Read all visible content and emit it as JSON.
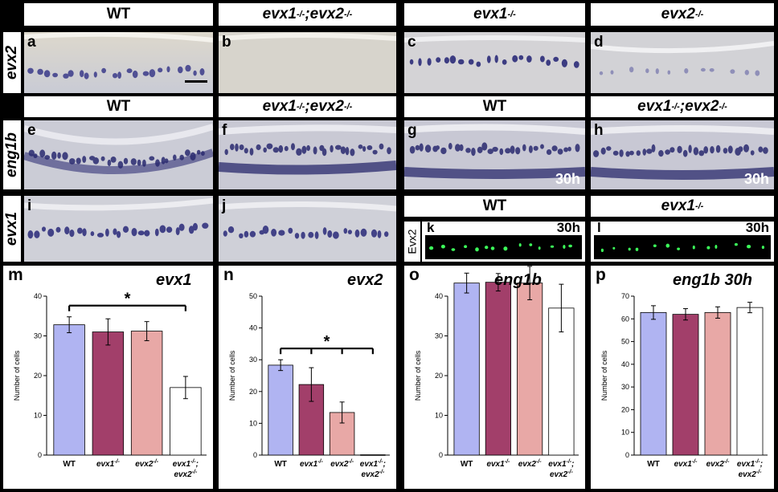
{
  "headers_row1": [
    {
      "text": "WT",
      "sup": ""
    },
    {
      "text": "evx1",
      "sup": "-/-",
      "text2": ";evx2",
      "sup2": "-/-"
    },
    {
      "text": "evx1",
      "sup": "-/-"
    },
    {
      "text": "evx2",
      "sup": "-/-"
    }
  ],
  "headers_row2": [
    {
      "text": "WT",
      "sup": ""
    },
    {
      "text": "evx1",
      "sup": "-/-",
      "text2": ";evx2",
      "sup2": "-/-"
    },
    {
      "text": "WT",
      "sup": ""
    },
    {
      "text": "evx1",
      "sup": "-/-",
      "text2": ";evx2",
      "sup2": "-/-"
    }
  ],
  "headers_row3": [
    {
      "text": "WT",
      "sup": ""
    },
    {
      "text": "evx1",
      "sup": "-/-"
    }
  ],
  "row_labels": {
    "row1": "evx2",
    "row2": "eng1b",
    "row3": "evx1",
    "evx2_ab": "Evx2"
  },
  "panel_letters": [
    "a",
    "b",
    "c",
    "d",
    "e",
    "f",
    "g",
    "h",
    "i",
    "j",
    "k",
    "l"
  ],
  "time_tag": "30h",
  "colors": {
    "stain": "#3a3a8a",
    "tissue": "#c8cad6",
    "fluor": "#3cff5a",
    "bar_wt": "#b0b4f2",
    "bar_evx1": "#a23f6a",
    "bar_evx2": "#e8a8a6",
    "bar_dbl": "#ffffff"
  },
  "chart_data": [
    {
      "type": "bar",
      "letter": "m",
      "title": "evx1",
      "ylabel": "Number of cells",
      "ylim": [
        0,
        40
      ],
      "yticks": [
        0,
        10,
        20,
        30,
        40
      ],
      "categories": [
        "WT",
        "evx1-/-",
        "evx2-/-",
        "evx1-/-; evx2-/-"
      ],
      "cat_main": [
        "WT",
        "evx1",
        "evx2",
        "evx1"
      ],
      "cat_sup": [
        "",
        "-/-",
        "-/-",
        "-/-"
      ],
      "cat_line2": [
        "",
        "",
        "",
        "evx2"
      ],
      "cat_line2_sup": [
        "",
        "",
        "",
        "-/-"
      ],
      "values": [
        32.8,
        31.0,
        31.2,
        17.0
      ],
      "errors": [
        2.0,
        3.3,
        2.4,
        2.8
      ],
      "sig": [
        {
          "from": 0,
          "to": 3,
          "ticks": [
            0,
            3
          ],
          "label": "*"
        }
      ]
    },
    {
      "type": "bar",
      "letter": "n",
      "title": "evx2",
      "ylabel": "Number of cells",
      "ylim": [
        0,
        50
      ],
      "yticks": [
        0,
        10,
        20,
        30,
        40,
        50
      ],
      "categories": [
        "WT",
        "evx1-/-",
        "evx2-/-",
        "evx1-/-; evx2-/-"
      ],
      "cat_main": [
        "WT",
        "evx1",
        "evx2",
        "evx1"
      ],
      "cat_sup": [
        "",
        "-/-",
        "-/-",
        "-/-"
      ],
      "cat_line2": [
        "",
        "",
        "",
        "evx2"
      ],
      "cat_line2_sup": [
        "",
        "",
        "",
        "-/-"
      ],
      "values": [
        28.3,
        22.2,
        13.4,
        0.1
      ],
      "errors": [
        1.7,
        5.3,
        3.3,
        0.0
      ],
      "sig": [
        {
          "from": 0,
          "to": 3,
          "ticks": [
            0,
            1,
            2,
            3
          ],
          "label": "*"
        }
      ]
    },
    {
      "type": "bar",
      "letter": "o",
      "title": "eng1b",
      "ylabel": "Number of cells",
      "ylim": [
        0,
        40
      ],
      "yticks": [
        0,
        10,
        20,
        30,
        40
      ],
      "categories": [
        "WT",
        "evx1-/-",
        "evx2-/-",
        "evx1-/-; evx2-/-"
      ],
      "cat_main": [
        "WT",
        "evx1",
        "evx2",
        "evx1"
      ],
      "cat_sup": [
        "",
        "-/-",
        "-/-",
        "-/-"
      ],
      "cat_line2": [
        "",
        "",
        "",
        "evx2"
      ],
      "cat_line2_sup": [
        "",
        "",
        "",
        "-/-"
      ],
      "values": [
        43.3,
        43.5,
        43.3,
        37.0
      ],
      "errors": [
        2.5,
        2.2,
        4.2,
        6.0
      ],
      "sig": []
    },
    {
      "type": "bar",
      "letter": "p",
      "title": "eng1b 30h",
      "ylabel": "Number of cells",
      "ylim": [
        0,
        70
      ],
      "yticks": [
        0,
        10,
        20,
        30,
        40,
        50,
        60,
        70
      ],
      "categories": [
        "WT",
        "evx1-/-",
        "evx2-/-",
        "evx1-/-; evx2-/-"
      ],
      "cat_main": [
        "WT",
        "evx1",
        "evx2",
        "evx1"
      ],
      "cat_sup": [
        "",
        "-/-",
        "-/-",
        "-/-"
      ],
      "cat_line2": [
        "",
        "",
        "",
        "evx2"
      ],
      "cat_line2_sup": [
        "",
        "",
        "",
        "-/-"
      ],
      "values": [
        62.8,
        62.0,
        62.8,
        65.0
      ],
      "errors": [
        3.0,
        2.5,
        2.5,
        2.3
      ],
      "sig": []
    }
  ]
}
